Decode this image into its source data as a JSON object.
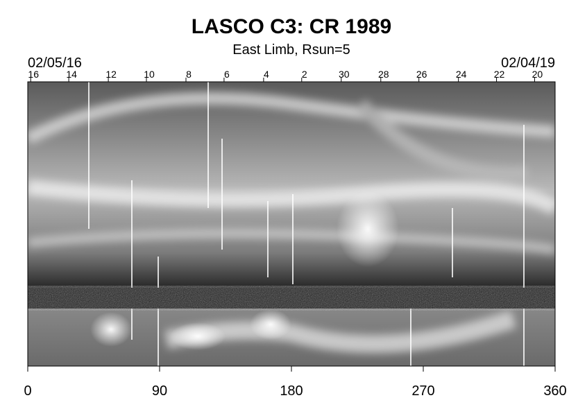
{
  "chart_data": {
    "type": "synoptic-map",
    "title": "LASCO C3: CR 1989",
    "subtitle": "East Limb, Rsun=5",
    "start_date": "02/05/16",
    "end_date": "02/04/19",
    "xlim": [
      0,
      360
    ],
    "xticks": [
      0,
      90,
      180,
      270,
      360
    ],
    "day_ticks": [
      {
        "value": 2,
        "label": "16"
      },
      {
        "value": 28,
        "label": "14"
      },
      {
        "value": 55,
        "label": "12"
      },
      {
        "value": 81,
        "label": "10"
      },
      {
        "value": 108,
        "label": "8"
      },
      {
        "value": 134,
        "label": "6"
      },
      {
        "value": 161,
        "label": "4"
      },
      {
        "value": 187,
        "label": "2"
      },
      {
        "value": 214,
        "label": "30"
      },
      {
        "value": 241,
        "label": "28"
      },
      {
        "value": 267,
        "label": "26"
      },
      {
        "value": 294,
        "label": "24"
      },
      {
        "value": 320,
        "label": "22"
      },
      {
        "value": 346,
        "label": "20"
      }
    ]
  }
}
